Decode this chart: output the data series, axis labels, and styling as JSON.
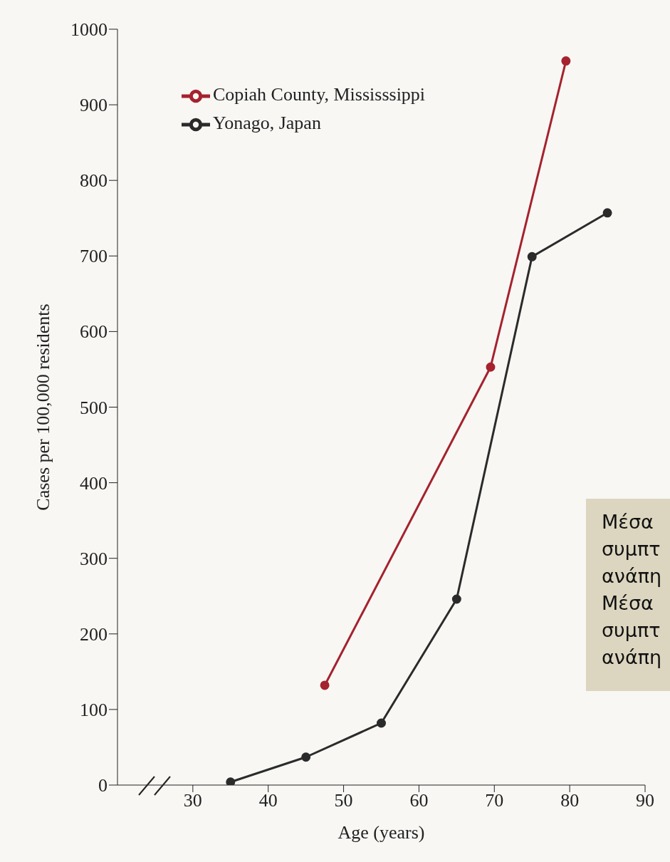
{
  "chart_data": {
    "type": "line",
    "xlabel": "Age (years)",
    "ylabel": "Cases per 100,000 residents",
    "xlim": [
      20,
      90
    ],
    "xticks": [
      30,
      40,
      50,
      60,
      70,
      80,
      90
    ],
    "ylim": [
      0,
      1000
    ],
    "yticks": [
      0,
      100,
      200,
      300,
      400,
      500,
      600,
      700,
      800,
      900,
      1000
    ],
    "series": [
      {
        "name": "Copiah County, Mississsippi",
        "color": "#a5222e",
        "x": [
          47.5,
          69.5,
          79.5
        ],
        "values": [
          132,
          553,
          958
        ]
      },
      {
        "name": "Yonago, Japan",
        "color": "#2b2b2b",
        "x": [
          35,
          45,
          55,
          65,
          75,
          85
        ],
        "values": [
          4,
          37,
          82,
          246,
          699,
          757
        ]
      }
    ],
    "legend": "top left",
    "marker": "circle",
    "line_style": "solid",
    "annotations": [
      "Μέσα\nσυμπτ\nανάπη\nΜέσα\nσυμπτ\nανάπη"
    ]
  }
}
